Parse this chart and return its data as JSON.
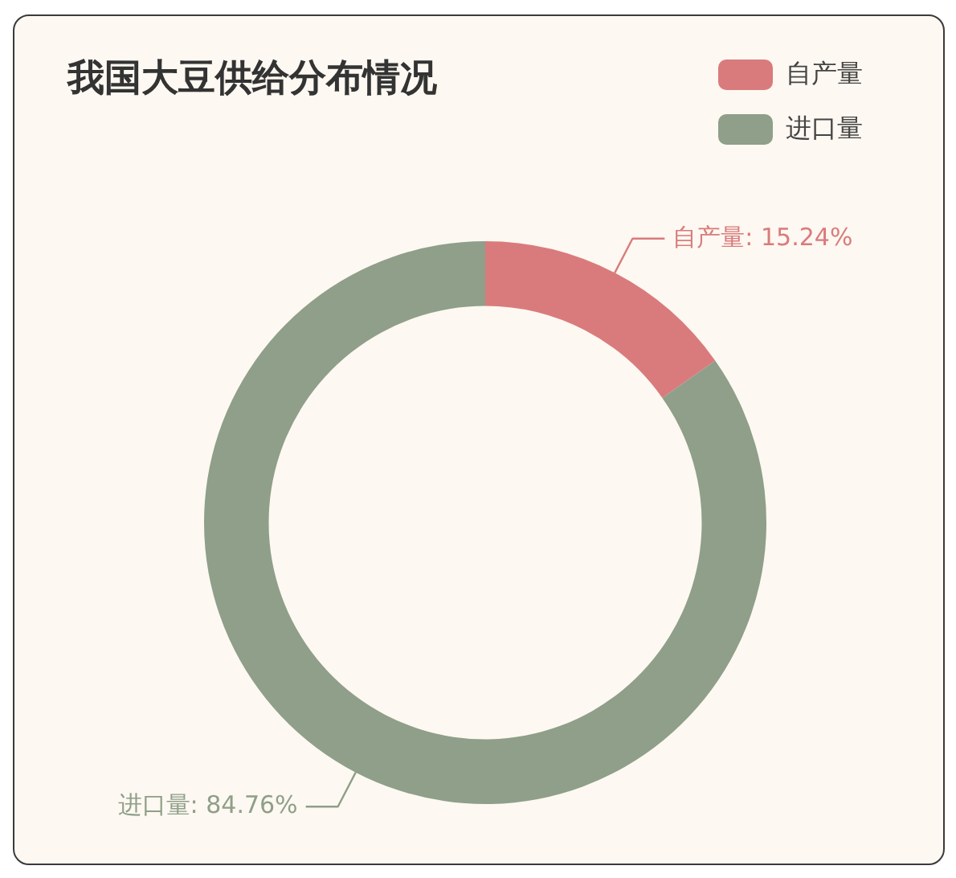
{
  "chart_data": {
    "type": "donut",
    "title": "我国大豆供给分布情况",
    "categories": [
      "自产量",
      "进口量"
    ],
    "values": [
      15.24,
      84.76
    ],
    "colors": [
      "#d97b7c",
      "#8f9f89"
    ],
    "value_labels": [
      "自产量: 15.24%",
      "进口量: 84.76%"
    ],
    "legend": "top right"
  }
}
